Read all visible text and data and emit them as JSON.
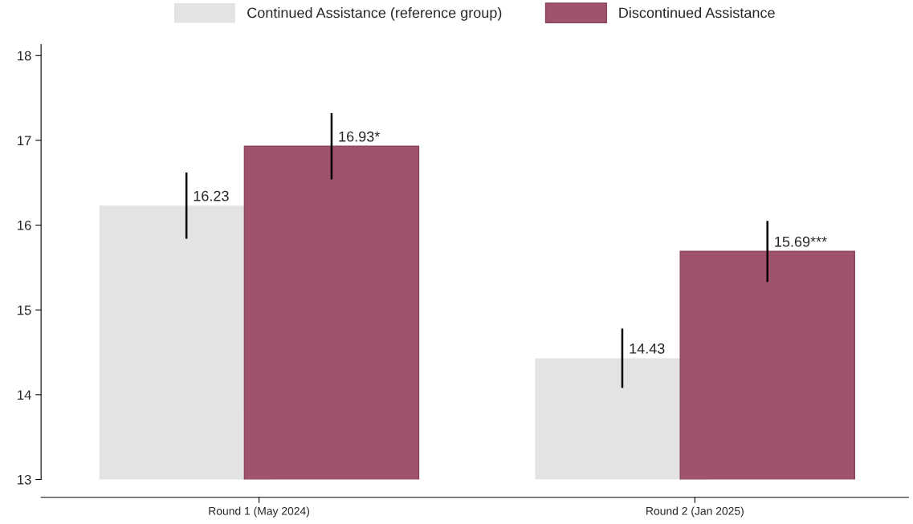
{
  "chart_data": {
    "type": "bar",
    "categories": [
      "Round 1 (May 2024)",
      "Round 2 (Jan 2025)"
    ],
    "series": [
      {
        "name": "Continued Assistance (reference group)",
        "color": "#e3e3e3",
        "values": [
          16.23,
          14.43
        ],
        "errors": [
          0.39,
          0.35
        ],
        "value_labels": [
          "16.23",
          "14.43"
        ]
      },
      {
        "name": "Discontinued Assistance",
        "color": "#a0526e",
        "values": [
          16.93,
          15.69
        ],
        "errors": [
          0.39,
          0.36
        ],
        "value_labels": [
          "16.93*",
          "15.69***"
        ]
      }
    ],
    "ylim": [
      13,
      18.13
    ],
    "yticks": [
      13,
      14,
      15,
      16,
      17,
      18
    ],
    "grid": false,
    "legend": "top"
  }
}
